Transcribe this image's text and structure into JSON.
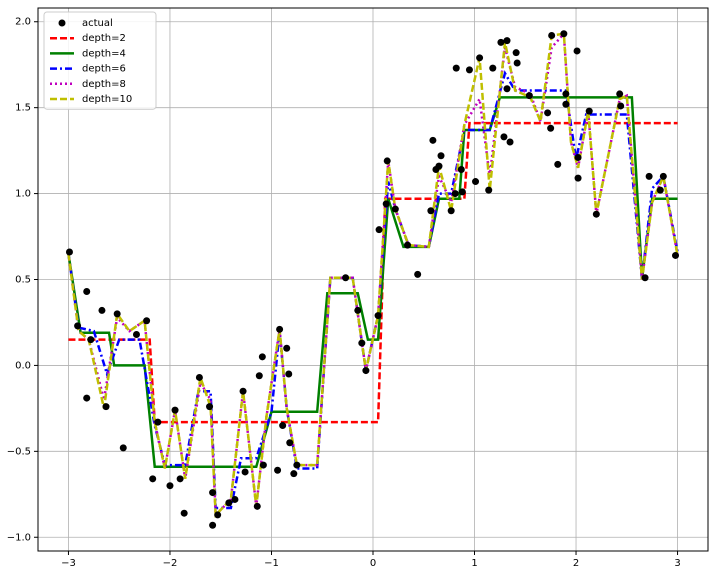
{
  "chart_data": {
    "type": "line",
    "xlim": [
      -3.3,
      3.3
    ],
    "ylim": [
      -1.08,
      2.08
    ],
    "xticks": [
      {
        "value": -3,
        "label": "−3"
      },
      {
        "value": -2,
        "label": "−2"
      },
      {
        "value": -1,
        "label": "−1"
      },
      0,
      1,
      2,
      3
    ],
    "yticks": [
      {
        "value": -1,
        "label": "−1.0"
      },
      {
        "value": -0.5,
        "label": "−0.5"
      },
      {
        "value": 0,
        "label": "0.0"
      },
      0.5,
      {
        "value": 1,
        "label": "1.0"
      },
      1.5,
      {
        "value": 2,
        "label": "2.0"
      }
    ],
    "grid": true,
    "legend": "upper left",
    "series": [
      {
        "name": "actual",
        "type": "scatter",
        "color": "#000000",
        "x": [
          -2.99,
          -2.91,
          -2.82,
          -2.82,
          -2.78,
          -2.67,
          -2.63,
          -2.52,
          -2.46,
          -2.33,
          -2.23,
          -2.17,
          -2.12,
          -2.0,
          -1.95,
          -1.9,
          -1.86,
          -1.71,
          -1.61,
          -1.58,
          -1.58,
          -1.53,
          -1.42,
          -1.36,
          -1.28,
          -1.26,
          -1.14,
          -1.12,
          -1.09,
          -1.08,
          -0.94,
          -0.92,
          -0.89,
          -0.85,
          -0.83,
          -0.82,
          -0.78,
          -0.75,
          -0.27,
          -0.15,
          -0.11,
          -0.07,
          0.05,
          0.06,
          0.13,
          0.14,
          0.22,
          0.34,
          0.44,
          0.57,
          0.59,
          0.62,
          0.65,
          0.67,
          0.77,
          0.81,
          0.82,
          0.87,
          0.88,
          0.95,
          1.01,
          1.05,
          1.14,
          1.18,
          1.26,
          1.29,
          1.32,
          1.32,
          1.35,
          1.41,
          1.42,
          1.54,
          1.72,
          1.75,
          1.76,
          1.82,
          1.88,
          1.9,
          1.9,
          2.01,
          2.02,
          2.02,
          2.13,
          2.2,
          2.43,
          2.44,
          2.68,
          2.72,
          2.83,
          2.86,
          2.98
        ],
        "values": [
          0.66,
          0.23,
          0.43,
          -0.19,
          0.15,
          0.32,
          -0.24,
          0.3,
          -0.48,
          0.18,
          0.26,
          -0.66,
          -0.33,
          -0.7,
          -0.26,
          -0.66,
          -0.86,
          -0.07,
          -0.24,
          -0.74,
          -0.93,
          -0.87,
          -0.8,
          -0.78,
          -0.15,
          -0.62,
          -0.82,
          -0.06,
          0.05,
          -0.58,
          -0.61,
          0.21,
          -0.35,
          0.1,
          -0.05,
          -0.45,
          -0.63,
          -0.58,
          0.51,
          0.32,
          0.13,
          -0.03,
          0.29,
          0.79,
          0.94,
          1.19,
          0.91,
          0.7,
          0.53,
          0.9,
          1.31,
          1.14,
          1.16,
          1.22,
          0.9,
          1.0,
          1.73,
          1.14,
          1.01,
          1.72,
          1.07,
          1.79,
          1.02,
          1.73,
          1.88,
          1.33,
          1.89,
          1.61,
          1.3,
          1.82,
          1.76,
          1.57,
          1.47,
          1.38,
          1.92,
          1.17,
          1.93,
          1.58,
          1.52,
          1.83,
          1.21,
          1.09,
          1.48,
          0.88,
          1.58,
          1.51,
          0.51,
          1.1,
          1.02,
          1.1,
          0.64
        ]
      },
      {
        "name": "depth=2",
        "type": "line",
        "color": "#ff0000",
        "linestyle": "dashed",
        "x": [
          -3,
          -2.2,
          -2.15,
          0.05,
          0.12,
          0.9,
          0.95,
          3
        ],
        "values": [
          0.15,
          0.15,
          -0.33,
          -0.33,
          0.97,
          0.97,
          1.41,
          1.41
        ]
      },
      {
        "name": "depth=4",
        "type": "line",
        "color": "#008000",
        "linestyle": "solid",
        "x": [
          -3,
          -2.88,
          -2.6,
          -2.55,
          -2.25,
          -2.15,
          -1.15,
          -1.0,
          -0.55,
          -0.45,
          -0.15,
          -0.05,
          0.05,
          0.15,
          0.3,
          0.55,
          0.65,
          0.85,
          0.9,
          1.15,
          1.25,
          2.55,
          2.65,
          2.75,
          3
        ],
        "values": [
          0.65,
          0.19,
          0.19,
          0,
          0,
          -0.59,
          -0.59,
          -0.27,
          -0.27,
          0.42,
          0.42,
          0.15,
          0.15,
          0.97,
          0.69,
          0.69,
          0.97,
          0.97,
          1.37,
          1.37,
          1.56,
          1.56,
          0.51,
          0.97,
          0.97
        ]
      },
      {
        "name": "depth=6",
        "type": "line",
        "color": "#0000ff",
        "linestyle": "dashdot",
        "x": [
          -3,
          -2.9,
          -2.75,
          -2.62,
          -2.5,
          -2.3,
          -2.15,
          -2.05,
          -1.85,
          -1.72,
          -1.6,
          -1.55,
          -1.4,
          -1.3,
          -1.15,
          -1.0,
          -0.92,
          -0.85,
          -0.75,
          -0.55,
          -0.42,
          -0.2,
          -0.07,
          0.05,
          0.15,
          0.22,
          0.35,
          0.55,
          0.65,
          0.77,
          0.9,
          1.15,
          1.3,
          1.4,
          1.9,
          2.0,
          2.1,
          2.5,
          2.65,
          2.75,
          2.86,
          3
        ],
        "values": [
          0.65,
          0.22,
          0.2,
          -0.05,
          0.15,
          0.15,
          -0.35,
          -0.58,
          -0.58,
          -0.15,
          -0.15,
          -0.83,
          -0.83,
          -0.54,
          -0.54,
          -0.27,
          0.2,
          -0.25,
          -0.6,
          -0.6,
          0.51,
          0.51,
          -0.03,
          0.29,
          1.07,
          0.91,
          0.7,
          0.69,
          1.0,
          1.0,
          1.37,
          1.37,
          1.7,
          1.6,
          1.6,
          1.2,
          1.46,
          1.46,
          0.5,
          1.03,
          1.1,
          0.66
        ]
      },
      {
        "name": "depth=8",
        "type": "line",
        "color": "#bf00bf",
        "linestyle": "dotted",
        "x": [
          -3,
          -2.9,
          -2.8,
          -2.65,
          -2.52,
          -2.4,
          -2.25,
          -2.15,
          -2.05,
          -1.95,
          -1.85,
          -1.7,
          -1.6,
          -1.55,
          -1.4,
          -1.28,
          -1.15,
          -1.05,
          -0.92,
          -0.85,
          -0.75,
          -0.55,
          -0.42,
          -0.2,
          -0.07,
          0.05,
          0.15,
          0.22,
          0.35,
          0.55,
          0.65,
          0.77,
          0.9,
          1.05,
          1.15,
          1.3,
          1.4,
          1.55,
          1.65,
          1.76,
          1.88,
          1.95,
          2.02,
          2.12,
          2.2,
          2.43,
          2.5,
          2.65,
          2.75,
          2.86,
          3
        ],
        "values": [
          0.65,
          0.2,
          0.15,
          -0.2,
          0.28,
          0.2,
          0.26,
          -0.33,
          -0.6,
          -0.26,
          -0.66,
          -0.1,
          -0.2,
          -0.87,
          -0.78,
          -0.15,
          -0.82,
          -0.3,
          0.21,
          -0.25,
          -0.58,
          -0.58,
          0.51,
          0.51,
          -0.03,
          0.29,
          1.19,
          0.91,
          0.7,
          0.69,
          1.1,
          0.95,
          1.4,
          1.55,
          1.1,
          1.85,
          1.62,
          1.58,
          1.42,
          1.85,
          1.93,
          1.3,
          1.15,
          1.48,
          0.88,
          1.55,
          1.57,
          0.5,
          0.95,
          1.1,
          0.64
        ]
      },
      {
        "name": "depth=10",
        "type": "line",
        "color": "#bfbf00",
        "linestyle": "dashed",
        "x": [
          -3,
          -2.9,
          -2.8,
          -2.65,
          -2.52,
          -2.4,
          -2.25,
          -2.15,
          -2.05,
          -1.95,
          -1.85,
          -1.7,
          -1.6,
          -1.55,
          -1.4,
          -1.28,
          -1.15,
          -1.05,
          -0.92,
          -0.85,
          -0.75,
          -0.55,
          -0.42,
          -0.2,
          -0.07,
          0.05,
          0.15,
          0.22,
          0.35,
          0.55,
          0.65,
          0.77,
          0.9,
          1.05,
          1.15,
          1.3,
          1.4,
          1.55,
          1.65,
          1.76,
          1.88,
          1.95,
          2.02,
          2.12,
          2.2,
          2.43,
          2.5,
          2.65,
          2.75,
          2.86,
          3
        ],
        "values": [
          0.65,
          0.2,
          0.15,
          -0.25,
          0.3,
          0.2,
          0.26,
          -0.33,
          -0.6,
          -0.26,
          -0.66,
          -0.07,
          -0.24,
          -0.87,
          -0.78,
          -0.15,
          -0.82,
          -0.3,
          0.21,
          -0.25,
          -0.58,
          -0.58,
          0.51,
          0.51,
          -0.03,
          0.29,
          1.19,
          0.91,
          0.7,
          0.69,
          1.16,
          0.9,
          1.4,
          1.79,
          1.02,
          1.88,
          1.6,
          1.56,
          1.42,
          1.92,
          1.93,
          1.3,
          1.15,
          1.48,
          0.88,
          1.55,
          1.57,
          0.5,
          0.95,
          1.1,
          0.64
        ]
      }
    ]
  }
}
